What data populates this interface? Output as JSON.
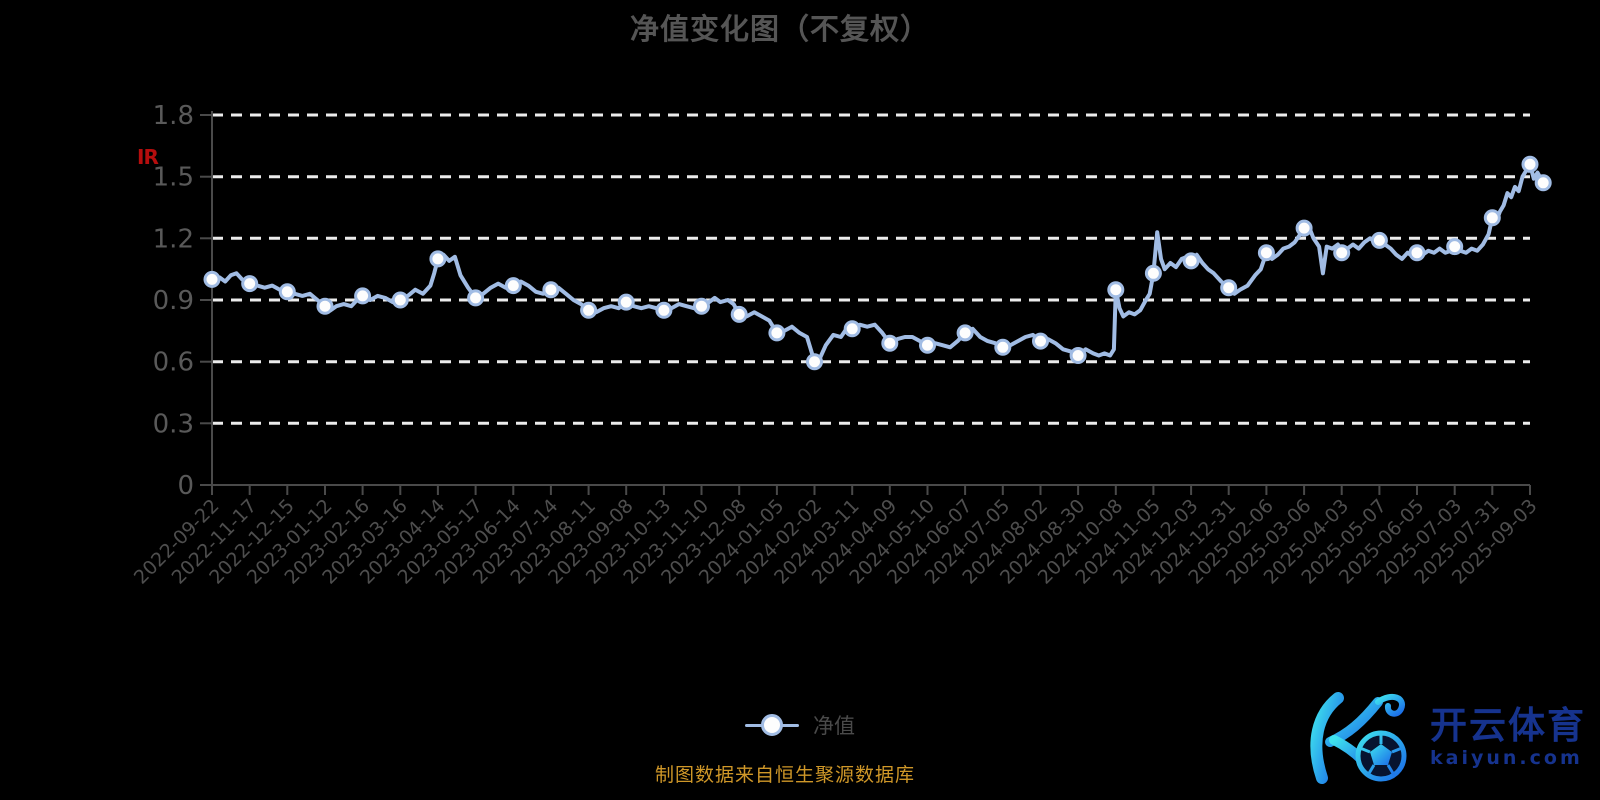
{
  "title": "净值变化图（不复权）",
  "watermark_label": "IR",
  "legend": {
    "label": "净值"
  },
  "source_note": "制图数据来自恒生聚源数据库",
  "logo": {
    "brand": "开云体育",
    "domain": "kaiyun.com"
  },
  "colors": {
    "background": "#000000",
    "title": "#555555",
    "axis": "#4a4a4a",
    "grid": "#ececec",
    "y_tick_label": "#595959",
    "x_tick_label": "#4e4e4e",
    "line": "#a1bce4",
    "dot_fill": "#fdfdfd",
    "red_mark": "#b50d0d",
    "source": "#cf9728",
    "logo_blue": "#16338e",
    "logo_gradient_start": "#3fe3ee",
    "logo_gradient_end": "#1a6ae8"
  },
  "chart_data": {
    "type": "line",
    "title": "净值变化图（不复权）",
    "series_name": "净值",
    "grid": "horizontal dashed white lines",
    "legend_position": "bottom-center",
    "ylim": [
      0,
      1.8
    ],
    "y_ticks": [
      0,
      0.3,
      0.6,
      0.9,
      1.2,
      1.5,
      1.8
    ],
    "y_tick_labels": [
      "0",
      "0.3",
      "0.6",
      "0.9",
      "1.2",
      "1.5",
      "1.8"
    ],
    "x_tick_labels": [
      "2022-09-22",
      "2022-11-17",
      "2022-12-15",
      "2023-01-12",
      "2023-02-16",
      "2023-03-16",
      "2023-04-14",
      "2023-05-17",
      "2023-06-14",
      "2023-07-14",
      "2023-08-11",
      "2023-09-08",
      "2023-10-13",
      "2023-11-10",
      "2023-12-08",
      "2024-01-05",
      "2024-02-02",
      "2024-03-11",
      "2024-04-09",
      "2024-05-10",
      "2024-06-07",
      "2024-07-05",
      "2024-08-02",
      "2024-08-30",
      "2024-10-08",
      "2024-11-05",
      "2024-12-03",
      "2024-12-31",
      "2025-02-06",
      "2025-03-06",
      "2025-04-03",
      "2025-05-07",
      "2025-06-05",
      "2025-07-03",
      "2025-07-31",
      "2025-09-03"
    ],
    "points": [
      {
        "x": 0,
        "date": "2022-09-22",
        "value": 1.0
      },
      {
        "x": 1,
        "date": "2022-11-17",
        "value": 0.98
      },
      {
        "x": 2,
        "date": "2022-12-15",
        "value": 0.94
      },
      {
        "x": 3,
        "date": "2023-01-12",
        "value": 0.87
      },
      {
        "x": 4,
        "date": "2023-02-16",
        "value": 0.92
      },
      {
        "x": 5,
        "date": "2023-03-16",
        "value": 0.9
      },
      {
        "x": 6,
        "date": "2023-04-14",
        "value": 1.1
      },
      {
        "x": 7,
        "date": "2023-05-17",
        "value": 0.91
      },
      {
        "x": 8,
        "date": "2023-06-14",
        "value": 0.97
      },
      {
        "x": 9,
        "date": "2023-07-14",
        "value": 0.95
      },
      {
        "x": 10,
        "date": "2023-08-11",
        "value": 0.85
      },
      {
        "x": 11,
        "date": "2023-09-08",
        "value": 0.89
      },
      {
        "x": 12,
        "date": "2023-10-13",
        "value": 0.85
      },
      {
        "x": 13,
        "date": "2023-11-10",
        "value": 0.87
      },
      {
        "x": 14,
        "date": "2023-12-08",
        "value": 0.83
      },
      {
        "x": 15,
        "date": "2024-01-05",
        "value": 0.74
      },
      {
        "x": 16,
        "date": "2024-02-02",
        "value": 0.6
      },
      {
        "x": 17,
        "date": "2024-03-11",
        "value": 0.76
      },
      {
        "x": 18,
        "date": "2024-04-09",
        "value": 0.69
      },
      {
        "x": 19,
        "date": "2024-05-10",
        "value": 0.68
      },
      {
        "x": 20,
        "date": "2024-06-07",
        "value": 0.74
      },
      {
        "x": 21,
        "date": "2024-07-05",
        "value": 0.67
      },
      {
        "x": 22,
        "date": "2024-08-02",
        "value": 0.7
      },
      {
        "x": 23,
        "date": "2024-08-30",
        "value": 0.63
      },
      {
        "x": 24,
        "date": "2024-10-08",
        "value": 0.95
      },
      {
        "x": 25,
        "date": "2024-11-05",
        "value": 1.03
      },
      {
        "x": 26,
        "date": "2024-12-03",
        "value": 1.09
      },
      {
        "x": 27,
        "date": "2024-12-31",
        "value": 0.96
      },
      {
        "x": 28,
        "date": "2025-02-06",
        "value": 1.13
      },
      {
        "x": 29,
        "date": "2025-03-06",
        "value": 1.25
      },
      {
        "x": 30,
        "date": "2025-04-03",
        "value": 1.13
      },
      {
        "x": 31,
        "date": "2025-05-07",
        "value": 1.19
      },
      {
        "x": 32,
        "date": "2025-06-05",
        "value": 1.13
      },
      {
        "x": 33,
        "date": "2025-07-03",
        "value": 1.16
      },
      {
        "x": 34,
        "date": "2025-07-31",
        "value": 1.3
      },
      {
        "x": 35,
        "date": "2025-09-03",
        "value": 1.56
      },
      {
        "x": 35.35,
        "date": null,
        "value": 1.47
      }
    ],
    "line": [
      [
        0,
        1.0
      ],
      [
        0.2,
        1.01
      ],
      [
        0.35,
        0.99
      ],
      [
        0.5,
        1.02
      ],
      [
        0.65,
        1.03
      ],
      [
        0.8,
        1.0
      ],
      [
        1,
        0.98
      ],
      [
        1.2,
        0.97
      ],
      [
        1.4,
        0.96
      ],
      [
        1.6,
        0.97
      ],
      [
        1.8,
        0.95
      ],
      [
        2,
        0.94
      ],
      [
        2.2,
        0.93
      ],
      [
        2.4,
        0.92
      ],
      [
        2.6,
        0.93
      ],
      [
        2.8,
        0.9
      ],
      [
        3,
        0.87
      ],
      [
        3.15,
        0.85
      ],
      [
        3.3,
        0.87
      ],
      [
        3.5,
        0.88
      ],
      [
        3.7,
        0.87
      ],
      [
        3.85,
        0.9
      ],
      [
        4,
        0.92
      ],
      [
        4.2,
        0.9
      ],
      [
        4.4,
        0.92
      ],
      [
        4.6,
        0.91
      ],
      [
        4.8,
        0.89
      ],
      [
        5,
        0.9
      ],
      [
        5.2,
        0.92
      ],
      [
        5.4,
        0.95
      ],
      [
        5.6,
        0.93
      ],
      [
        5.8,
        0.97
      ],
      [
        5.9,
        1.03
      ],
      [
        6,
        1.1
      ],
      [
        6.15,
        1.12
      ],
      [
        6.3,
        1.09
      ],
      [
        6.45,
        1.11
      ],
      [
        6.6,
        1.02
      ],
      [
        6.8,
        0.96
      ],
      [
        7,
        0.91
      ],
      [
        7.2,
        0.93
      ],
      [
        7.4,
        0.96
      ],
      [
        7.6,
        0.98
      ],
      [
        7.8,
        0.96
      ],
      [
        8,
        0.97
      ],
      [
        8.2,
        0.99
      ],
      [
        8.4,
        0.97
      ],
      [
        8.6,
        0.94
      ],
      [
        8.8,
        0.93
      ],
      [
        9,
        0.95
      ],
      [
        9.2,
        0.96
      ],
      [
        9.4,
        0.93
      ],
      [
        9.6,
        0.9
      ],
      [
        9.8,
        0.88
      ],
      [
        10,
        0.85
      ],
      [
        10.2,
        0.84
      ],
      [
        10.4,
        0.86
      ],
      [
        10.6,
        0.87
      ],
      [
        10.8,
        0.86
      ],
      [
        11,
        0.89
      ],
      [
        11.2,
        0.87
      ],
      [
        11.4,
        0.86
      ],
      [
        11.6,
        0.87
      ],
      [
        11.8,
        0.86
      ],
      [
        12,
        0.85
      ],
      [
        12.2,
        0.86
      ],
      [
        12.4,
        0.88
      ],
      [
        12.6,
        0.87
      ],
      [
        12.8,
        0.86
      ],
      [
        13,
        0.87
      ],
      [
        13.2,
        0.89
      ],
      [
        13.35,
        0.91
      ],
      [
        13.5,
        0.89
      ],
      [
        13.7,
        0.9
      ],
      [
        13.85,
        0.88
      ],
      [
        14,
        0.83
      ],
      [
        14.2,
        0.82
      ],
      [
        14.4,
        0.84
      ],
      [
        14.6,
        0.82
      ],
      [
        14.8,
        0.8
      ],
      [
        15,
        0.74
      ],
      [
        15.2,
        0.75
      ],
      [
        15.4,
        0.77
      ],
      [
        15.6,
        0.74
      ],
      [
        15.8,
        0.72
      ],
      [
        16,
        0.6
      ],
      [
        16.15,
        0.62
      ],
      [
        16.3,
        0.68
      ],
      [
        16.5,
        0.73
      ],
      [
        16.7,
        0.72
      ],
      [
        16.85,
        0.76
      ],
      [
        17,
        0.76
      ],
      [
        17.2,
        0.78
      ],
      [
        17.4,
        0.77
      ],
      [
        17.6,
        0.78
      ],
      [
        17.8,
        0.74
      ],
      [
        18,
        0.69
      ],
      [
        18.2,
        0.71
      ],
      [
        18.4,
        0.72
      ],
      [
        18.6,
        0.72
      ],
      [
        18.8,
        0.7
      ],
      [
        19,
        0.68
      ],
      [
        19.2,
        0.69
      ],
      [
        19.4,
        0.68
      ],
      [
        19.6,
        0.67
      ],
      [
        19.8,
        0.7
      ],
      [
        20,
        0.74
      ],
      [
        20.2,
        0.76
      ],
      [
        20.4,
        0.72
      ],
      [
        20.6,
        0.7
      ],
      [
        20.8,
        0.69
      ],
      [
        21,
        0.67
      ],
      [
        21.2,
        0.68
      ],
      [
        21.4,
        0.7
      ],
      [
        21.6,
        0.72
      ],
      [
        21.8,
        0.73
      ],
      [
        22,
        0.7
      ],
      [
        22.2,
        0.71
      ],
      [
        22.4,
        0.69
      ],
      [
        22.6,
        0.66
      ],
      [
        22.8,
        0.65
      ],
      [
        23,
        0.63
      ],
      [
        23.2,
        0.66
      ],
      [
        23.4,
        0.64
      ],
      [
        23.55,
        0.63
      ],
      [
        23.7,
        0.64
      ],
      [
        23.85,
        0.63
      ],
      [
        23.95,
        0.66
      ],
      [
        24,
        0.95
      ],
      [
        24.1,
        0.86
      ],
      [
        24.2,
        0.82
      ],
      [
        24.35,
        0.84
      ],
      [
        24.5,
        0.83
      ],
      [
        24.65,
        0.85
      ],
      [
        24.8,
        0.9
      ],
      [
        24.9,
        0.93
      ],
      [
        25,
        1.03
      ],
      [
        25.1,
        1.23
      ],
      [
        25.2,
        1.1
      ],
      [
        25.3,
        1.05
      ],
      [
        25.45,
        1.08
      ],
      [
        25.6,
        1.06
      ],
      [
        25.75,
        1.1
      ],
      [
        25.9,
        1.11
      ],
      [
        26,
        1.09
      ],
      [
        26.15,
        1.12
      ],
      [
        26.3,
        1.08
      ],
      [
        26.45,
        1.05
      ],
      [
        26.6,
        1.03
      ],
      [
        26.8,
        0.99
      ],
      [
        27,
        0.96
      ],
      [
        27.15,
        0.93
      ],
      [
        27.3,
        0.95
      ],
      [
        27.5,
        0.97
      ],
      [
        27.7,
        1.02
      ],
      [
        27.85,
        1.05
      ],
      [
        28,
        1.13
      ],
      [
        28.15,
        1.1
      ],
      [
        28.3,
        1.12
      ],
      [
        28.45,
        1.15
      ],
      [
        28.6,
        1.16
      ],
      [
        28.75,
        1.18
      ],
      [
        28.9,
        1.22
      ],
      [
        29,
        1.25
      ],
      [
        29.1,
        1.27
      ],
      [
        29.25,
        1.2
      ],
      [
        29.4,
        1.16
      ],
      [
        29.5,
        1.03
      ],
      [
        29.6,
        1.16
      ],
      [
        29.75,
        1.15
      ],
      [
        29.9,
        1.17
      ],
      [
        30,
        1.13
      ],
      [
        30.15,
        1.15
      ],
      [
        30.3,
        1.17
      ],
      [
        30.45,
        1.15
      ],
      [
        30.6,
        1.18
      ],
      [
        30.75,
        1.2
      ],
      [
        30.9,
        1.18
      ],
      [
        31,
        1.19
      ],
      [
        31.15,
        1.17
      ],
      [
        31.3,
        1.15
      ],
      [
        31.45,
        1.12
      ],
      [
        31.6,
        1.1
      ],
      [
        31.75,
        1.13
      ],
      [
        31.9,
        1.11
      ],
      [
        32,
        1.13
      ],
      [
        32.15,
        1.12
      ],
      [
        32.3,
        1.14
      ],
      [
        32.45,
        1.13
      ],
      [
        32.6,
        1.15
      ],
      [
        32.75,
        1.13
      ],
      [
        32.9,
        1.14
      ],
      [
        33,
        1.16
      ],
      [
        33.15,
        1.14
      ],
      [
        33.3,
        1.13
      ],
      [
        33.45,
        1.15
      ],
      [
        33.6,
        1.14
      ],
      [
        33.75,
        1.17
      ],
      [
        33.9,
        1.22
      ],
      [
        34,
        1.3
      ],
      [
        34.1,
        1.28
      ],
      [
        34.2,
        1.33
      ],
      [
        34.3,
        1.36
      ],
      [
        34.4,
        1.42
      ],
      [
        34.5,
        1.4
      ],
      [
        34.6,
        1.45
      ],
      [
        34.7,
        1.43
      ],
      [
        34.8,
        1.5
      ],
      [
        34.9,
        1.53
      ],
      [
        35,
        1.56
      ],
      [
        35.1,
        1.49
      ],
      [
        35.2,
        1.52
      ],
      [
        35.35,
        1.47
      ]
    ]
  }
}
